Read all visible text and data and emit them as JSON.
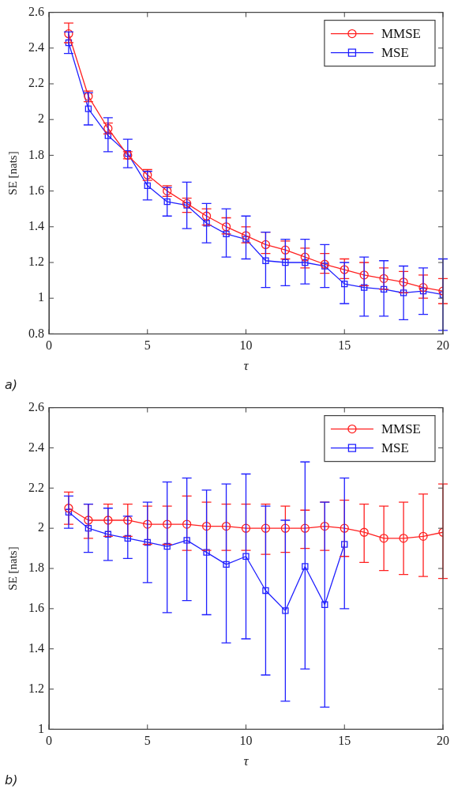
{
  "chart_data": [
    {
      "type": "line",
      "xlabel": "τ",
      "ylabel": "SE [nats]",
      "annotations": [
        "a)"
      ],
      "x": [
        1,
        2,
        3,
        4,
        5,
        6,
        7,
        8,
        9,
        10,
        11,
        12,
        13,
        14,
        15,
        16,
        17,
        18,
        19,
        20
      ],
      "xlim": [
        0,
        20
      ],
      "xticks": [
        0,
        5,
        10,
        15,
        20
      ],
      "ylim": [
        0.8,
        2.6
      ],
      "yticks": [
        0.8,
        1,
        1.2,
        1.4,
        1.6,
        1.8,
        2,
        2.2,
        2.4,
        2.6
      ],
      "legend": "top right",
      "series": [
        {
          "name": "MMSE",
          "color": "#ff2020",
          "marker": "circle",
          "values": [
            2.48,
            2.13,
            1.95,
            1.8,
            1.69,
            1.6,
            1.53,
            1.46,
            1.4,
            1.35,
            1.3,
            1.27,
            1.23,
            1.19,
            1.16,
            1.13,
            1.11,
            1.09,
            1.06,
            1.04
          ],
          "errors": [
            [
              2.43,
              2.54
            ],
            [
              2.1,
              2.16
            ],
            [
              1.92,
              1.98
            ],
            [
              1.78,
              1.82
            ],
            [
              1.66,
              1.72
            ],
            [
              1.57,
              1.63
            ],
            [
              1.48,
              1.56
            ],
            [
              1.41,
              1.5
            ],
            [
              1.36,
              1.45
            ],
            [
              1.31,
              1.4
            ],
            [
              1.25,
              1.37
            ],
            [
              1.22,
              1.32
            ],
            [
              1.17,
              1.28
            ],
            [
              1.14,
              1.25
            ],
            [
              1.11,
              1.22
            ],
            [
              1.07,
              1.2
            ],
            [
              1.05,
              1.17
            ],
            [
              1.03,
              1.15
            ],
            [
              1.0,
              1.13
            ],
            [
              0.97,
              1.11
            ]
          ]
        },
        {
          "name": "MSE",
          "color": "#2020ff",
          "marker": "square",
          "values": [
            2.43,
            2.06,
            1.91,
            1.81,
            1.63,
            1.54,
            1.52,
            1.42,
            1.36,
            1.33,
            1.21,
            1.2,
            1.2,
            1.18,
            1.08,
            1.06,
            1.05,
            1.03,
            1.04,
            1.02
          ],
          "errors": [
            [
              2.37,
              2.49
            ],
            [
              1.97,
              2.15
            ],
            [
              1.82,
              2.01
            ],
            [
              1.73,
              1.89
            ],
            [
              1.55,
              1.71
            ],
            [
              1.46,
              1.62
            ],
            [
              1.39,
              1.65
            ],
            [
              1.31,
              1.53
            ],
            [
              1.23,
              1.5
            ],
            [
              1.22,
              1.46
            ],
            [
              1.06,
              1.37
            ],
            [
              1.07,
              1.33
            ],
            [
              1.08,
              1.33
            ],
            [
              1.06,
              1.3
            ],
            [
              0.97,
              1.2
            ],
            [
              0.9,
              1.23
            ],
            [
              0.9,
              1.21
            ],
            [
              0.88,
              1.18
            ],
            [
              0.91,
              1.17
            ],
            [
              0.82,
              1.22
            ]
          ]
        }
      ]
    },
    {
      "type": "line",
      "xlabel": "τ",
      "ylabel": "SE [nats]",
      "annotations": [
        "b)"
      ],
      "x": [
        1,
        2,
        3,
        4,
        5,
        6,
        7,
        8,
        9,
        10,
        11,
        12,
        13,
        14,
        15,
        16,
        17,
        18,
        19,
        20
      ],
      "xlim": [
        0,
        20
      ],
      "xticks": [
        0,
        5,
        10,
        15,
        20
      ],
      "ylim": [
        1,
        2.6
      ],
      "yticks": [
        1,
        1.2,
        1.4,
        1.6,
        1.8,
        2,
        2.2,
        2.4,
        2.6
      ],
      "legend": "top right",
      "series": [
        {
          "name": "MMSE",
          "color": "#ff2020",
          "marker": "circle",
          "values": [
            2.1,
            2.04,
            2.04,
            2.04,
            2.02,
            2.02,
            2.02,
            2.01,
            2.01,
            2.0,
            2.0,
            2.0,
            2.0,
            2.01,
            2.0,
            1.98,
            1.95,
            1.95,
            1.96,
            1.98
          ],
          "errors": [
            [
              2.02,
              2.18
            ],
            [
              1.95,
              2.12
            ],
            [
              1.96,
              2.12
            ],
            [
              1.96,
              2.12
            ],
            [
              1.92,
              2.11
            ],
            [
              1.92,
              2.11
            ],
            [
              1.89,
              2.16
            ],
            [
              1.89,
              2.13
            ],
            [
              1.89,
              2.12
            ],
            [
              1.89,
              2.12
            ],
            [
              1.87,
              2.12
            ],
            [
              1.88,
              2.11
            ],
            [
              1.9,
              2.09
            ],
            [
              1.89,
              2.13
            ],
            [
              1.86,
              2.14
            ],
            [
              1.83,
              2.12
            ],
            [
              1.79,
              2.11
            ],
            [
              1.77,
              2.13
            ],
            [
              1.76,
              2.17
            ],
            [
              1.75,
              2.22
            ]
          ]
        },
        {
          "name": "MSE",
          "color": "#2020ff",
          "marker": "square",
          "values": [
            2.08,
            2.0,
            1.97,
            1.95,
            1.93,
            1.91,
            1.94,
            1.88,
            1.82,
            1.86,
            1.69,
            1.59,
            1.81,
            1.62,
            1.92,
            null,
            null,
            null,
            null,
            null
          ],
          "errors": [
            [
              2.0,
              2.16
            ],
            [
              1.88,
              2.12
            ],
            [
              1.84,
              2.1
            ],
            [
              1.85,
              2.06
            ],
            [
              1.73,
              2.13
            ],
            [
              1.58,
              2.23
            ],
            [
              1.64,
              2.25
            ],
            [
              1.57,
              2.19
            ],
            [
              1.43,
              2.22
            ],
            [
              1.45,
              2.27
            ],
            [
              1.27,
              2.11
            ],
            [
              1.14,
              2.04
            ],
            [
              1.3,
              2.33
            ],
            [
              1.11,
              2.13
            ],
            [
              1.6,
              2.25
            ],
            null,
            null,
            null,
            null,
            null
          ]
        }
      ]
    }
  ]
}
